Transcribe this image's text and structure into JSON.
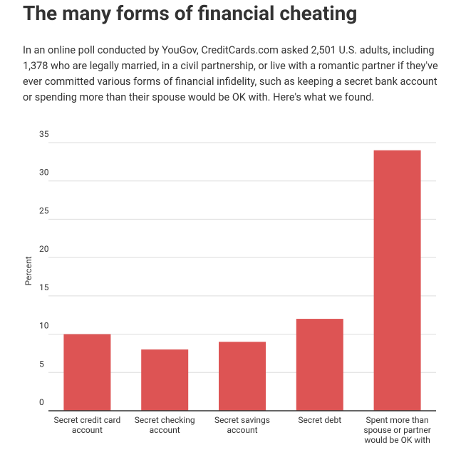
{
  "chart_data": {
    "type": "bar",
    "title": "The many forms of financial cheating",
    "subtitle": "In an online poll conducted by YouGov, CreditCards.com asked 2,501 U.S. adults, including 1,378 who are legally married, in a civil partnership, or live with a romantic partner if they've ever committed various forms of financial infidelity, such as keeping a secret bank account or spending more than their spouse would be OK with. Here's what we found.",
    "y_label": "Percent",
    "categories": [
      "Secret credit card account",
      "Secret checking account",
      "Secret savings account",
      "Secret debt",
      "Spent more than spouse or partner would be OK with"
    ],
    "values": [
      10,
      8,
      9,
      12,
      34
    ],
    "color": "#dd5454",
    "ylim": [
      0,
      35
    ],
    "yticks": [
      0,
      5,
      10,
      15,
      20,
      25,
      30,
      35
    ],
    "grid": true
  }
}
